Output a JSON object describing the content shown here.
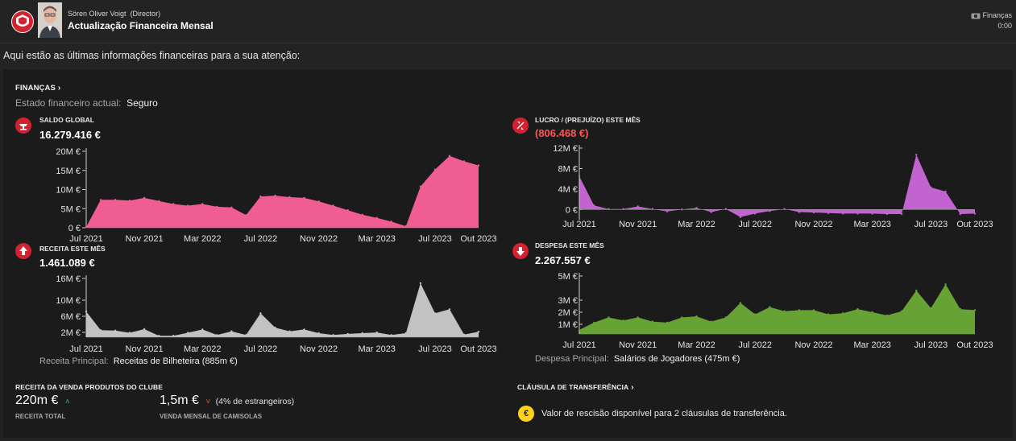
{
  "header": {
    "sender_name": "Sören Oliver Voigt",
    "sender_role": "(Director)",
    "subject": "Actualização Financeira Mensal",
    "context_label": "Finanças",
    "time": "0:00"
  },
  "intro_text": "Aqui estão as últimas informações financeiras para a sua atenção:",
  "finances": {
    "heading": "FINANÇAS",
    "status_label": "Estado financeiro actual:",
    "status_value": "Seguro"
  },
  "x_axis_labels": [
    "Jul 2021",
    "Nov 2021",
    "Mar 2022",
    "Jul 2022",
    "Nov 2022",
    "Mar 2023",
    "Jul 2023",
    "Out 2023"
  ],
  "chart_data": [
    {
      "id": "saldo",
      "type": "area",
      "title": "SALDO GLOBAL",
      "value_text": "16.279.416 €",
      "color": "#ef5d93",
      "x": [
        "Jul 2021",
        "Ago 2021",
        "Set 2021",
        "Out 2021",
        "Nov 2021",
        "Dez 2021",
        "Jan 2022",
        "Fev 2022",
        "Mar 2022",
        "Abr 2022",
        "Mai 2022",
        "Jun 2022",
        "Jul 2022",
        "Ago 2022",
        "Set 2022",
        "Out 2022",
        "Nov 2022",
        "Dez 2022",
        "Jan 2023",
        "Fev 2023",
        "Mar 2023",
        "Abr 2023",
        "Mai 2023",
        "Jun 2023",
        "Jul 2023",
        "Ago 2023",
        "Set 2023",
        "Out 2023"
      ],
      "values": [
        0.2,
        7.3,
        7.3,
        7.1,
        7.8,
        7.0,
        6.2,
        5.8,
        6.2,
        5.5,
        5.3,
        3.3,
        8.2,
        8.4,
        8.0,
        7.8,
        6.9,
        5.8,
        4.6,
        3.4,
        2.6,
        1.6,
        0.4,
        10.8,
        15.2,
        18.8,
        17.4,
        16.3
      ],
      "y_ticks": [
        "20M €",
        "15M €",
        "10M €",
        "5M €",
        "0 €"
      ],
      "ylim": [
        0,
        20
      ]
    },
    {
      "id": "lucro",
      "type": "area",
      "title": "LUCRO / (PREJUÍZO) ESTE MÊS",
      "value_text": "(806.468 €)",
      "color": "#c264cf",
      "x": [
        "Jul 2021",
        "Ago 2021",
        "Set 2021",
        "Out 2021",
        "Nov 2021",
        "Dez 2021",
        "Jan 2022",
        "Fev 2022",
        "Mar 2022",
        "Abr 2022",
        "Mai 2022",
        "Jun 2022",
        "Jul 2022",
        "Ago 2022",
        "Set 2022",
        "Out 2022",
        "Nov 2022",
        "Dez 2022",
        "Jan 2023",
        "Fev 2023",
        "Mar 2023",
        "Abr 2023",
        "Mai 2023",
        "Jun 2023",
        "Jul 2023",
        "Ago 2023",
        "Set 2023",
        "Out 2023"
      ],
      "values": [
        6.5,
        0.8,
        0.1,
        0.1,
        0.6,
        0.1,
        -0.4,
        0.0,
        0.3,
        -0.5,
        0.1,
        -1.5,
        -0.8,
        -0.3,
        0.1,
        -0.5,
        -0.6,
        -0.7,
        -0.8,
        -0.8,
        -0.8,
        -0.9,
        -0.9,
        10.7,
        4.3,
        3.5,
        -0.9,
        -0.8
      ],
      "y_ticks": [
        "12M €",
        "8M €",
        "4M €",
        "0 €"
      ],
      "ylim": [
        -2,
        12
      ]
    },
    {
      "id": "receita",
      "type": "area",
      "title": "RECEITA ESTE MÊS",
      "value_text": "1.461.089 €",
      "color": "#c2c2c2",
      "x": [
        "Jul 2021",
        "Ago 2021",
        "Set 2021",
        "Out 2021",
        "Nov 2021",
        "Dez 2021",
        "Jan 2022",
        "Fev 2022",
        "Mar 2022",
        "Abr 2022",
        "Mai 2022",
        "Jun 2022",
        "Jul 2022",
        "Ago 2022",
        "Set 2022",
        "Out 2022",
        "Nov 2022",
        "Dez 2022",
        "Jan 2023",
        "Fev 2023",
        "Mar 2023",
        "Abr 2023",
        "Mai 2023",
        "Jun 2023",
        "Jul 2023",
        "Ago 2023",
        "Set 2023",
        "Out 2023"
      ],
      "values": [
        7.0,
        1.9,
        1.8,
        1.2,
        2.2,
        0.4,
        0.4,
        1.2,
        2.1,
        0.6,
        1.6,
        0.6,
        6.5,
        2.6,
        1.6,
        2.1,
        1.1,
        0.6,
        0.9,
        1.1,
        1.3,
        0.6,
        1.1,
        14.7,
        6.5,
        7.6,
        0.7,
        1.5
      ],
      "y_ticks": [
        "16M €",
        "10M €",
        "6M €",
        "2M €"
      ],
      "ylim": [
        0,
        16
      ],
      "note_label": "Receita Principal:",
      "note_value": "Receitas de Bilheteira (885m €)"
    },
    {
      "id": "despesa",
      "type": "area",
      "title": "DESPESA ESTE MÊS",
      "value_text": "2.267.557 €",
      "color": "#67a234",
      "x": [
        "Jul 2021",
        "Ago 2021",
        "Set 2021",
        "Out 2021",
        "Nov 2021",
        "Dez 2021",
        "Jan 2022",
        "Fev 2022",
        "Mar 2022",
        "Abr 2022",
        "Mai 2022",
        "Jun 2022",
        "Jul 2022",
        "Ago 2022",
        "Set 2022",
        "Out 2022",
        "Nov 2022",
        "Dez 2022",
        "Jan 2023",
        "Fev 2023",
        "Mar 2023",
        "Abr 2023",
        "Mai 2023",
        "Jun 2023",
        "Jul 2023",
        "Ago 2023",
        "Set 2023",
        "Out 2023"
      ],
      "values": [
        0.4,
        1.1,
        1.6,
        1.3,
        1.6,
        1.2,
        1.1,
        1.6,
        1.7,
        1.2,
        1.6,
        3.0,
        1.9,
        2.6,
        2.2,
        2.3,
        2.3,
        1.9,
        2.0,
        2.4,
        2.1,
        1.8,
        2.2,
        4.2,
        2.5,
        4.8,
        2.4,
        2.3
      ],
      "y_ticks": [
        "5M €",
        "3M €",
        "2M €",
        "1M €"
      ],
      "ylim": [
        0,
        5.6
      ],
      "note_label": "Despesa Principal:",
      "note_value": "Salários de Jogadores (475m €)"
    }
  ],
  "merch": {
    "heading": "RECEITA DA VENDA PRODUTOS DO CLUBE",
    "total_value": "220m €",
    "total_label": "RECEITA TOTAL",
    "monthly_value": "1,5m €",
    "monthly_note": "(4% de estrangeiros)",
    "monthly_label": "VENDA MENSAL DE CAMISOLAS"
  },
  "transfer_clause": {
    "heading": "CLÁUSULA DE TRANSFERÊNCIA",
    "coin_symbol": "€",
    "text": "Valor de rescisão disponível para 2 cláusulas de transferência."
  },
  "colors": {
    "accent_red": "#d3212f",
    "negative": "#ff5555",
    "positive_arrow": "#3fbf5f",
    "negative_arrow": "#e05050",
    "coin": "#ffd21a"
  }
}
